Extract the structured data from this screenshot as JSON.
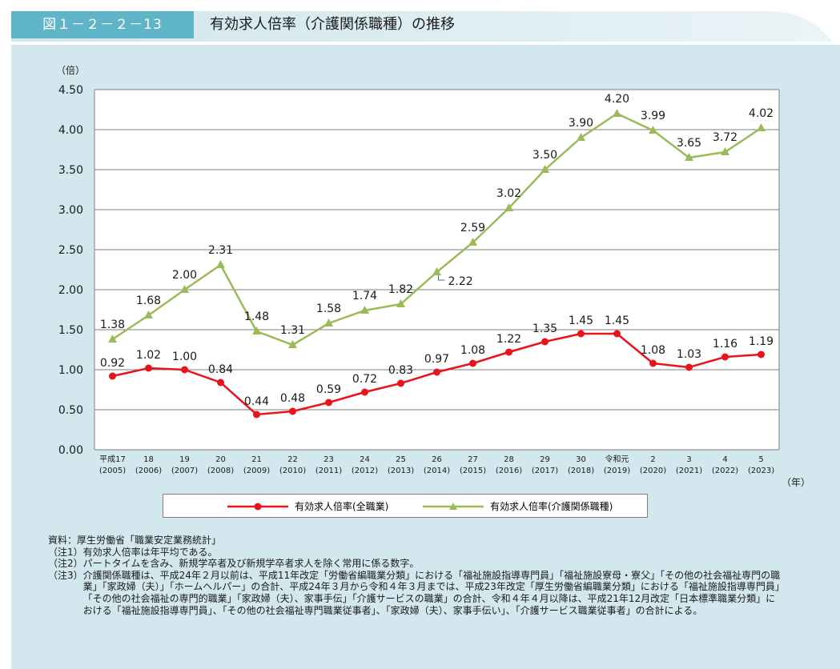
{
  "figure": {
    "label": "図１－２－２－13",
    "title": "有効求人倍率（介護関係職種）の推移"
  },
  "chart_data": {
    "type": "line",
    "ylabel": "（倍）",
    "xlabel": "（年）",
    "ylim": [
      0,
      4.5
    ],
    "yticks": [
      "0.00",
      "0.50",
      "1.00",
      "1.50",
      "2.00",
      "2.50",
      "3.00",
      "3.50",
      "4.00",
      "4.50"
    ],
    "grid": true,
    "legend_position": "bottom",
    "categories": [
      {
        "era": "平成17",
        "year": "(2005)"
      },
      {
        "era": "18",
        "year": "(2006)"
      },
      {
        "era": "19",
        "year": "(2007)"
      },
      {
        "era": "20",
        "year": "(2008)"
      },
      {
        "era": "21",
        "year": "(2009)"
      },
      {
        "era": "22",
        "year": "(2010)"
      },
      {
        "era": "23",
        "year": "(2011)"
      },
      {
        "era": "24",
        "year": "(2012)"
      },
      {
        "era": "25",
        "year": "(2013)"
      },
      {
        "era": "26",
        "year": "(2014)"
      },
      {
        "era": "27",
        "year": "(2015)"
      },
      {
        "era": "28",
        "year": "(2016)"
      },
      {
        "era": "29",
        "year": "(2017)"
      },
      {
        "era": "30",
        "year": "(2018)"
      },
      {
        "era": "令和元",
        "year": "(2019)"
      },
      {
        "era": "2",
        "year": "(2020)"
      },
      {
        "era": "3",
        "year": "(2021)"
      },
      {
        "era": "4",
        "year": "(2022)"
      },
      {
        "era": "5",
        "year": "(2023)"
      }
    ],
    "series": [
      {
        "name": "有効求人倍率(全職業)",
        "color": "#e8141b",
        "marker": "circle",
        "values": [
          0.92,
          1.02,
          1.0,
          0.84,
          0.44,
          0.48,
          0.59,
          0.72,
          0.83,
          0.97,
          1.08,
          1.22,
          1.35,
          1.45,
          1.45,
          1.08,
          1.03,
          1.16,
          1.19
        ],
        "labels": [
          "0.92",
          "1.02",
          "1.00",
          "0.84",
          "0.44",
          "0.48",
          "0.59",
          "0.72",
          "0.83",
          "0.97",
          "1.08",
          "1.22",
          "1.35",
          "1.45",
          "1.45",
          "1.08",
          "1.03",
          "1.16",
          "1.19"
        ]
      },
      {
        "name": "有効求人倍率(介護関係職種)",
        "color": "#9bbb59",
        "marker": "triangle",
        "values": [
          1.38,
          1.68,
          2.0,
          2.31,
          1.48,
          1.31,
          1.58,
          1.74,
          1.82,
          2.22,
          2.59,
          3.02,
          3.5,
          3.9,
          4.2,
          3.99,
          3.65,
          3.72,
          4.02
        ],
        "labels": [
          "1.38",
          "1.68",
          "2.00",
          "2.31",
          "1.48",
          "1.31",
          "1.58",
          "1.74",
          "1.82",
          "2.22",
          "2.59",
          "3.02",
          "3.50",
          "3.90",
          "4.20",
          "3.99",
          "3.65",
          "3.72",
          "4.02"
        ]
      }
    ]
  },
  "notes": [
    {
      "head": "資料：",
      "body": "厚生労働省「職業安定業務統計」"
    },
    {
      "head": "（注1）",
      "body": "有効求人倍率は年平均である。"
    },
    {
      "head": "（注2）",
      "body": "パートタイムを含み、新規学卒者及び新規学卒者求人を除く常用に係る数字。"
    },
    {
      "head": "（注3）",
      "body": "介護関係職種は、平成24年２月以前は、平成11年改定「労働省編職業分類」における「福祉施設指導専門員」「福祉施設寮母・寮父」「その他の社会福祉専門の職業」「家政婦（夫）」「ホームヘルパー」の合計、平成24年３月から令和４年３月までは、平成23年改定「厚生労働省編職業分類」における「福祉施設指導専門員」「その他の社会福祉の専門的職業」「家政婦（夫）、家事手伝」「介護サービスの職業」の合計、令和４年４月以降は、平成21年12月改定「日本標準職業分類」における「福祉施設指導専門員」、「その他の社会福祉専門職業従事者」、「家政婦（夫）、家事手伝い」、「介護サービス職業従事者」の合計による。"
    }
  ]
}
